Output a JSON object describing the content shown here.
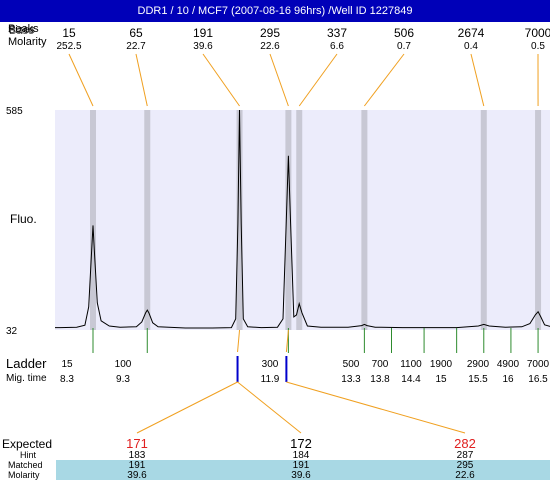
{
  "window": {
    "title": "DDR1 / 10 / MCF7 (2007-08-16 96hrs) /Well ID 1227849"
  },
  "labels": {
    "row1_overlap_a": "Peaks",
    "row1_overlap_b": "Sizes",
    "row1_overlap_c": "Base",
    "molarity": "Molarity",
    "fluo": "Fluo.",
    "ladder": "Ladder",
    "mig_time": "Mig. time",
    "expected": "Expected",
    "hint": "Hint",
    "matched": "Matched",
    "molarity_bottom": "Molarity"
  },
  "colors": {
    "title_bg": "#0000b8",
    "plot_bg": "#ececfb",
    "band": "#c8c8d4",
    "orange": "#f0a020",
    "green": "#2e8b2e",
    "blue": "#0000cc",
    "red": "#e02020",
    "table_bg": "#a8d8e4"
  },
  "chart_data": {
    "type": "line",
    "y_top_label": "585",
    "y_bottom_label": "32",
    "ylim": [
      32,
      585
    ],
    "peaks": [
      {
        "size": "15",
        "molarity": "252.5",
        "time": 8.3
      },
      {
        "size": "65",
        "molarity": "22.7",
        "time": 9.3
      },
      {
        "size": "191",
        "molarity": "39.6",
        "time": 11.0
      },
      {
        "size": "295",
        "molarity": "22.6",
        "time": 11.9
      },
      {
        "size": "337",
        "molarity": "6.6",
        "time": 12.1
      },
      {
        "size": "506",
        "molarity": "0.7",
        "time": 13.3
      },
      {
        "size": "2674",
        "molarity": "0.4",
        "time": 15.5
      },
      {
        "size": "7000",
        "molarity": "0.5",
        "time": 16.5
      }
    ],
    "ladder": [
      {
        "size": "15",
        "time": "8.3",
        "t": 8.3
      },
      {
        "size": "100",
        "time": "9.3",
        "t": 9.3
      },
      {
        "size": "300",
        "time": "11.9",
        "t": 11.9
      },
      {
        "size": "500",
        "time": "13.3",
        "t": 13.3
      },
      {
        "size": "700",
        "time": "13.8",
        "t": 13.8
      },
      {
        "size": "1100",
        "time": "14.4",
        "t": 14.4
      },
      {
        "size": "1900",
        "time": "15",
        "t": 15.0
      },
      {
        "size": "2900",
        "time": "15.5",
        "t": 15.5
      },
      {
        "size": "4900",
        "time": "16",
        "t": 16.0
      },
      {
        "size": "7000",
        "time": "16.5",
        "t": 16.5
      }
    ],
    "markers": [
      {
        "t": 11.0
      },
      {
        "t": 11.9
      }
    ],
    "trace_points": [
      [
        7.7,
        38
      ],
      [
        8.0,
        39
      ],
      [
        8.15,
        44
      ],
      [
        8.22,
        90
      ],
      [
        8.27,
        220
      ],
      [
        8.3,
        295
      ],
      [
        8.33,
        220
      ],
      [
        8.38,
        100
      ],
      [
        8.45,
        55
      ],
      [
        8.6,
        42
      ],
      [
        8.8,
        39
      ],
      [
        9.1,
        40
      ],
      [
        9.2,
        52
      ],
      [
        9.27,
        75
      ],
      [
        9.3,
        82
      ],
      [
        9.33,
        75
      ],
      [
        9.4,
        50
      ],
      [
        9.5,
        40
      ],
      [
        10.0,
        37
      ],
      [
        10.5,
        37
      ],
      [
        10.85,
        38
      ],
      [
        10.93,
        60
      ],
      [
        10.97,
        300
      ],
      [
        11.0,
        585
      ],
      [
        11.03,
        300
      ],
      [
        11.07,
        60
      ],
      [
        11.15,
        40
      ],
      [
        11.4,
        38
      ],
      [
        11.7,
        39
      ],
      [
        11.8,
        60
      ],
      [
        11.86,
        300
      ],
      [
        11.9,
        470
      ],
      [
        11.94,
        300
      ],
      [
        12.0,
        65
      ],
      [
        12.05,
        70
      ],
      [
        12.1,
        98
      ],
      [
        12.15,
        75
      ],
      [
        12.25,
        42
      ],
      [
        12.5,
        39
      ],
      [
        13.0,
        39
      ],
      [
        13.25,
        43
      ],
      [
        13.3,
        46
      ],
      [
        13.35,
        43
      ],
      [
        13.5,
        39
      ],
      [
        14.0,
        38
      ],
      [
        14.5,
        38
      ],
      [
        15.0,
        38
      ],
      [
        15.4,
        42
      ],
      [
        15.5,
        46
      ],
      [
        15.6,
        42
      ],
      [
        15.9,
        39
      ],
      [
        16.2,
        40
      ],
      [
        16.35,
        48
      ],
      [
        16.45,
        70
      ],
      [
        16.5,
        78
      ],
      [
        16.55,
        65
      ],
      [
        16.62,
        45
      ],
      [
        16.75,
        40
      ]
    ],
    "expected": [
      {
        "expected": "171",
        "hint": "183",
        "matched": "191",
        "molarity": "39.6",
        "link_t": 11.0,
        "flag": "red"
      },
      {
        "expected": "172",
        "hint": "184",
        "matched": "191",
        "molarity": "39.6",
        "link_t": 11.0,
        "flag": "black"
      },
      {
        "expected": "282",
        "hint": "287",
        "matched": "295",
        "molarity": "22.6",
        "link_t": 11.9,
        "flag": "red"
      }
    ]
  }
}
